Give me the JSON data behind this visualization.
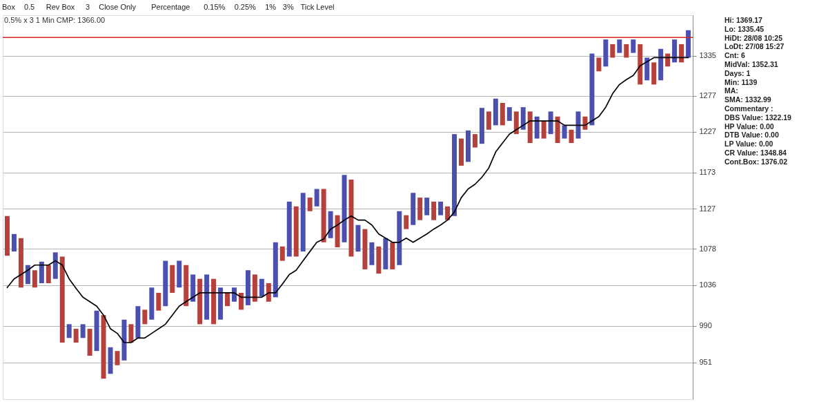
{
  "chart_data": {
    "type": "bar",
    "title": "0.5% x 3 1 Min CMP: 1366.00",
    "log": true,
    "grid": "y",
    "tick_labels": "y",
    "categories": [
      null,
      null,
      null,
      null,
      null,
      null,
      null,
      null,
      null,
      null,
      null,
      null,
      null,
      null,
      null,
      null,
      null,
      null,
      null,
      null,
      null,
      null,
      null,
      null,
      null,
      null,
      null,
      null,
      null,
      null,
      null,
      null,
      null,
      null,
      null,
      null,
      null,
      null,
      null,
      null,
      null,
      null,
      null,
      null,
      null,
      null,
      null,
      null,
      null,
      null,
      null,
      null,
      null,
      null,
      null,
      null,
      null,
      null,
      null,
      null,
      null,
      null,
      null,
      null,
      null,
      null,
      null,
      null,
      null,
      null,
      null,
      null,
      null,
      null,
      null,
      null,
      null,
      null,
      null,
      null,
      null,
      null,
      null,
      null,
      null,
      null,
      null,
      null,
      null,
      null,
      null,
      null,
      null,
      null,
      null,
      null,
      null,
      null,
      null,
      null
    ],
    "ylim": [
      913,
      1396
    ],
    "yticks": [
      951,
      990,
      1036,
      1078,
      1127,
      1173,
      1227,
      1277,
      1335
    ],
    "series": [
      {
        "values": [
          48,
          21,
          58,
          22,
          20,
          25,
          21,
          31,
          97,
          15,
          15,
          15,
          29,
          44,
          68,
          28,
          15,
          44,
          20,
          35,
          16,
          36,
          20,
          52,
          32,
          31,
          47,
          31,
          51,
          51,
          51,
          36,
          15,
          16,
          19,
          40,
          31,
          20,
          21,
          64,
          17,
          67,
          61,
          72,
          17,
          22,
          66,
          33,
          39,
          84,
          95,
          32,
          48,
          27,
          32,
          37,
          32,
          65,
          17,
          40,
          28,
          22,
          23,
          17,
          17,
          106,
          36,
          42,
          18,
          49,
          25,
          37,
          31,
          19,
          31,
          31,
          43,
          30,
          24,
          31,
          36,
          18,
          18,
          37,
          18,
          102,
          20,
          40,
          20,
          20,
          20,
          20,
          59,
          33,
          32,
          46,
          19,
          34,
          27,
          41
        ],
        "base": [
          1070,
          1075,
          1033,
          1037,
          1033,
          1038,
          1038,
          1043,
          972,
          977,
          972,
          977,
          958,
          963,
          934,
          939,
          948,
          953,
          972,
          977,
          992,
          997,
          1007,
          1012,
          1027,
          1033,
          1012,
          1017,
          992,
          997,
          992,
          997,
          1012,
          1017,
          1008,
          1013,
          1017,
          1023,
          1017,
          1022,
          1064,
          1069,
          1069,
          1075,
          1124,
          1130,
          1086,
          1091,
          1080,
          1086,
          1069,
          1075,
          1054,
          1059,
          1049,
          1054,
          1054,
          1059,
          1102,
          1107,
          1113,
          1119,
          1113,
          1119,
          1113,
          1118,
          1182,
          1187,
          1206,
          1211,
          1230,
          1236,
          1236,
          1242,
          1224,
          1230,
          1212,
          1218,
          1218,
          1224,
          1212,
          1218,
          1212,
          1218,
          1230,
          1236,
          1312,
          1319,
          1332,
          1339,
          1332,
          1339,
          1293,
          1299,
          1293,
          1299,
          1319,
          1325,
          1325,
          1332
        ],
        "colors": [
          "#b5403c",
          "#4b4fae",
          "#b5403c",
          "#4b4fae",
          "#b5403c",
          "#4b4fae",
          "#b5403c",
          "#4b4fae",
          "#b5403c",
          "#4b4fae",
          "#b5403c",
          "#4b4fae",
          "#b5403c",
          "#4b4fae",
          "#b5403c",
          "#4b4fae",
          "#b5403c",
          "#4b4fae",
          "#b5403c",
          "#4b4fae",
          "#b5403c",
          "#4b4fae",
          "#b5403c",
          "#4b4fae",
          "#b5403c",
          "#4b4fae",
          "#b5403c",
          "#4b4fae",
          "#b5403c",
          "#4b4fae",
          "#b5403c",
          "#4b4fae",
          "#b5403c",
          "#4b4fae",
          "#b5403c",
          "#4b4fae",
          "#b5403c",
          "#4b4fae",
          "#b5403c",
          "#4b4fae",
          "#b5403c",
          "#4b4fae",
          "#b5403c",
          "#4b4fae",
          "#b5403c",
          "#4b4fae",
          "#b5403c",
          "#4b4fae",
          "#b5403c",
          "#4b4fae",
          "#b5403c",
          "#4b4fae",
          "#b5403c",
          "#4b4fae",
          "#b5403c",
          "#4b4fae",
          "#b5403c",
          "#4b4fae",
          "#b5403c",
          "#4b4fae",
          "#b5403c",
          "#4b4fae",
          "#b5403c",
          "#4b4fae",
          "#b5403c",
          "#4b4fae",
          "#b5403c",
          "#4b4fae",
          "#b5403c",
          "#4b4fae",
          "#b5403c",
          "#4b4fae",
          "#b5403c",
          "#4b4fae",
          "#b5403c",
          "#4b4fae",
          "#b5403c",
          "#4b4fae",
          "#b5403c",
          "#4b4fae",
          "#b5403c",
          "#4b4fae",
          "#b5403c",
          "#4b4fae",
          "#b5403c",
          "#4b4fae",
          "#b5403c",
          "#4b4fae",
          "#b5403c",
          "#4b4fae",
          "#b5403c",
          "#4b4fae",
          "#b5403c",
          "#4b4fae",
          "#b5403c",
          "#4b4fae",
          "#b5403c",
          "#4b4fae",
          "#b5403c",
          "#4b4fae"
        ]
      },
      {
        "type": "line",
        "color": "#000000",
        "values": [
          1033,
          1043,
          1048,
          1053,
          1059,
          1059,
          1059,
          1064,
          1059,
          1043,
          1032,
          1022,
          1017,
          1012,
          1002,
          987,
          982,
          972,
          972,
          977,
          977,
          982,
          987,
          992,
          1002,
          1012,
          1017,
          1022,
          1027,
          1027,
          1027,
          1027,
          1027,
          1027,
          1022,
          1022,
          1022,
          1022,
          1027,
          1027,
          1037,
          1048,
          1053,
          1064,
          1075,
          1086,
          1090,
          1102,
          1107,
          1113,
          1118,
          1113,
          1113,
          1107,
          1096,
          1091,
          1086,
          1086,
          1091,
          1086,
          1091,
          1096,
          1102,
          1107,
          1113,
          1123,
          1141,
          1152,
          1158,
          1167,
          1179,
          1200,
          1212,
          1224,
          1230,
          1236,
          1242,
          1242,
          1242,
          1242,
          1242,
          1236,
          1236,
          1236,
          1236,
          1242,
          1248,
          1261,
          1280,
          1293,
          1300,
          1306,
          1320,
          1326,
          1332,
          1332,
          1332,
          1332,
          1332,
          1332
        ]
      }
    ],
    "ref_lines": [
      {
        "axis": "y",
        "value": 1362,
        "color": "#e0201c"
      }
    ],
    "annotations": [
      "Box",
      "0.5",
      "Rev Box",
      "3",
      "Close Only",
      "Percentage",
      "0.15%",
      "0.25%",
      "1%",
      "3%",
      "Tick Level",
      "Hi: 1369.17",
      "Lo: 1335.45",
      "HiDt: 28/08 10:25",
      "LoDt: 27/08 15:27",
      "Cnt: 6",
      "MidVal: 1352.31",
      "Days: 1",
      "Min: 1139",
      "MA:",
      "SMA: 1332.99",
      "Commentary :",
      "DBS Value: 1322.19",
      "HP Value: 0.00",
      "DTB Value: 0.00",
      "LP Value: 0.00",
      "CR Value: 1348.84",
      "Cont.Box: 1376.02"
    ]
  }
}
